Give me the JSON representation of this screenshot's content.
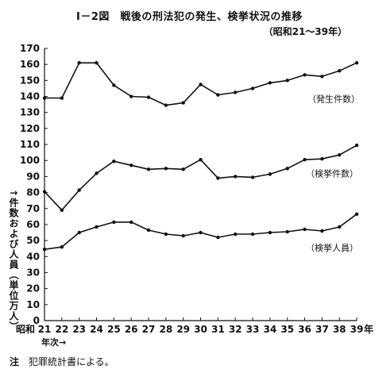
{
  "chart_data": {
    "type": "line",
    "title": "I－2図　戦後の刑法犯の発生、検挙状況の推移",
    "subtitle": "（昭和21～39年）",
    "xlabel": "年次→",
    "ylabel": "↑件数および人員（単位万人）",
    "x_era_label": "昭和",
    "x_last_suffix": "年",
    "x": [
      21,
      22,
      23,
      24,
      25,
      26,
      27,
      28,
      29,
      30,
      31,
      32,
      33,
      34,
      35,
      36,
      37,
      38,
      39
    ],
    "ylim": [
      0,
      170
    ],
    "yticks": [
      0,
      10,
      20,
      30,
      40,
      50,
      60,
      70,
      80,
      90,
      100,
      110,
      120,
      130,
      140,
      150,
      160,
      170
    ],
    "grid": false,
    "series": [
      {
        "name": "（発生件数）",
        "values": [
          139,
          139,
          161,
          161,
          147,
          140,
          139.5,
          134.5,
          136,
          147.5,
          141,
          142.5,
          145,
          148.5,
          150,
          153.5,
          152.5,
          156,
          161
        ]
      },
      {
        "name": "（検挙件数）",
        "values": [
          80.5,
          69,
          81.5,
          92,
          99.5,
          97,
          94.5,
          95,
          94.5,
          100.5,
          89,
          90,
          89.5,
          91.5,
          95,
          100.5,
          101,
          103.5,
          109.5
        ]
      },
      {
        "name": "（検挙人員）",
        "values": [
          44.5,
          46,
          55,
          58.5,
          61.5,
          61.5,
          56.5,
          54,
          53,
          55,
          52,
          54,
          54,
          55,
          55.5,
          57,
          56,
          58.5,
          66.5
        ]
      }
    ]
  },
  "footnote": {
    "lead": "注",
    "text": "犯罪統計書による。"
  }
}
